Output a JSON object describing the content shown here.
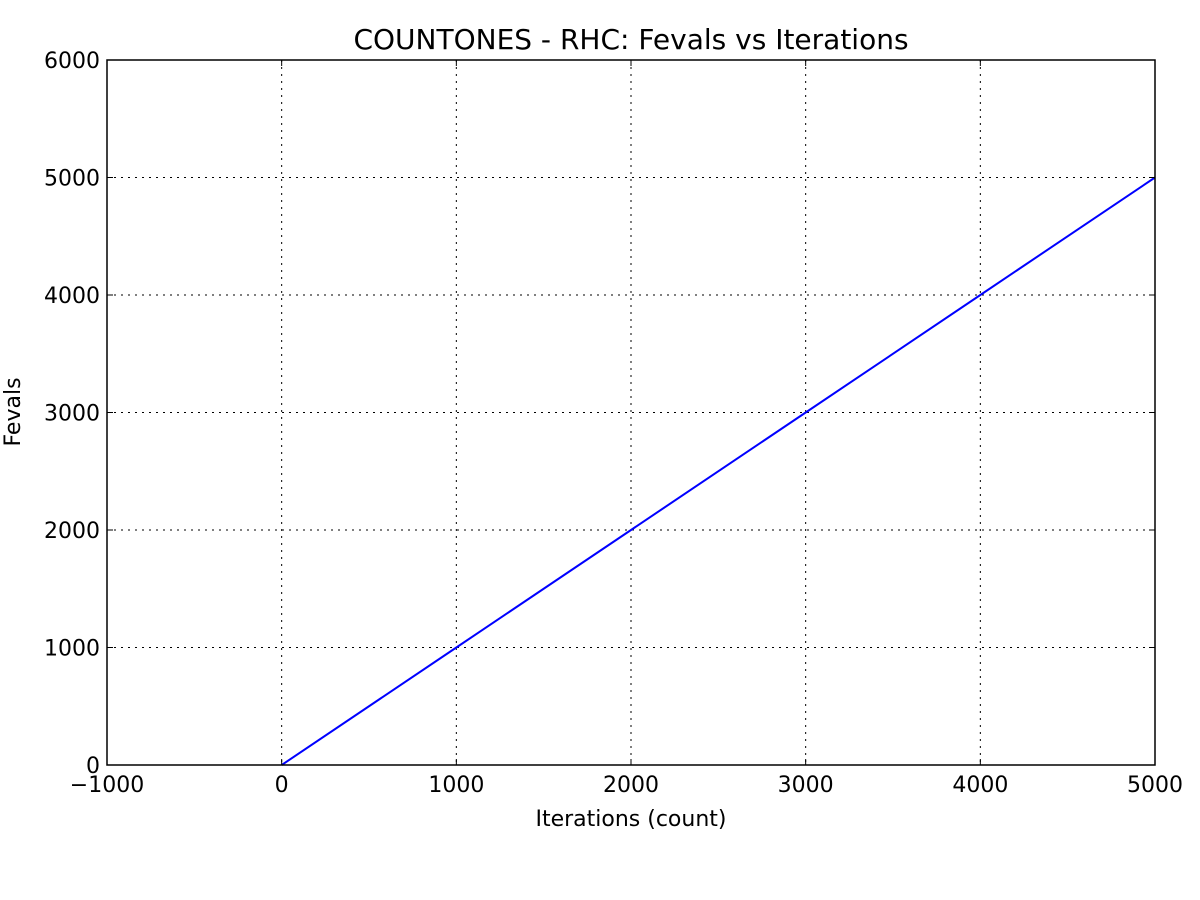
{
  "chart_data": {
    "type": "line",
    "title": "COUNTONES - RHC: Fevals vs Iterations",
    "xlabel": "Iterations (count)",
    "ylabel": "Fevals",
    "xlim": [
      -1000,
      5000
    ],
    "ylim": [
      0,
      6000
    ],
    "xticks": [
      -1000,
      0,
      1000,
      2000,
      3000,
      4000,
      5000
    ],
    "xtick_labels": [
      "−1000",
      "0",
      "1000",
      "2000",
      "3000",
      "4000",
      "5000"
    ],
    "yticks": [
      0,
      1000,
      2000,
      3000,
      4000,
      5000,
      6000
    ],
    "ytick_labels": [
      "0",
      "1000",
      "2000",
      "3000",
      "4000",
      "5000",
      "6000"
    ],
    "grid": true,
    "series": [
      {
        "color": "#0000ff",
        "x": [
          0,
          1000,
          2000,
          3000,
          4000,
          5000
        ],
        "y": [
          0,
          1000,
          2000,
          3000,
          4000,
          5000
        ]
      }
    ]
  }
}
